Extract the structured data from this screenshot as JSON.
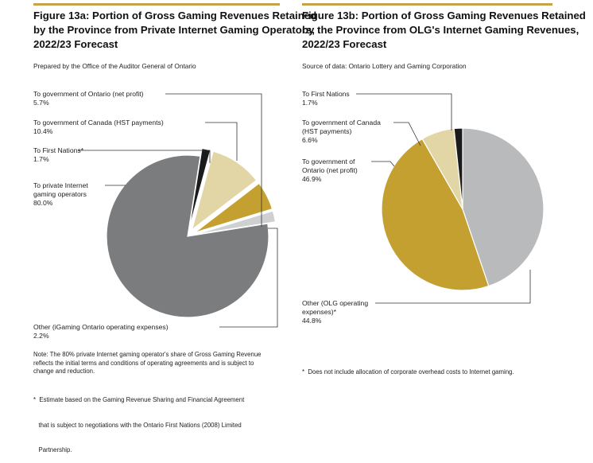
{
  "figures": [
    {
      "title_lines": [
        "Figure 13a: Portion of Gross Gaming Revenues Retained",
        "by the Province from Private Internet Gaming Operators,",
        "2022/23 Forecast"
      ],
      "source": "Prepared by the Office of the Auditor General of Ontario",
      "labels": [
        {
          "lines": [
            "To government of Ontario (net profit)",
            "5.7%"
          ]
        },
        {
          "lines": [
            "To government of Canada (HST payments)",
            "10.4%"
          ]
        },
        {
          "lines": [
            "To First Nations*",
            "1.7%"
          ]
        },
        {
          "lines": [
            "To private Internet",
            "gaming operators",
            "80.0%"
          ]
        },
        {
          "lines": [
            "Other (iGaming Ontario operating expenses)",
            "2.2%"
          ]
        }
      ],
      "notes": [
        "Note: The 80% private Internet gaming operator's share of Gross Gaming Revenue",
        "reflects the initial terms and conditions of operating agreements and is subject to",
        "change and reduction."
      ],
      "footnote": [
        "*  Estimate based on the Gaming Revenue Sharing and Financial Agreement",
        "   that is subject to negotiations with the Ontario First Nations (2008) Limited",
        "   Partnership."
      ]
    },
    {
      "title_lines": [
        "Figure 13b: Portion of Gross Gaming Revenues Retained",
        "by the Province from OLG's Internet Gaming Revenues,",
        "2022/23 Forecast"
      ],
      "source": "Source of data: Ontario Lottery and Gaming Corporation",
      "labels": [
        {
          "lines": [
            "To First Nations",
            "1.7%"
          ]
        },
        {
          "lines": [
            "To government of Canada",
            "(HST payments)",
            "6.6%"
          ]
        },
        {
          "lines": [
            "To government of",
            "Ontario (net profit)",
            "46.9%"
          ]
        },
        {
          "lines": [
            "Other (OLG operating",
            "expenses)*",
            "44.8%"
          ]
        }
      ],
      "footnote": [
        "*  Does not include allocation of corporate overhead costs to Internet gaming."
      ]
    }
  ],
  "chart_data": [
    {
      "type": "pie",
      "title": "Figure 13a: Portion of Gross Gaming Revenues Retained by the Province from Private Internet Gaming Operators, 2022/23 Forecast",
      "slices": [
        {
          "name": "To First Nations*",
          "value": 1.7,
          "color": "#1b1b1b"
        },
        {
          "name": "To government of Canada (HST payments)",
          "value": 10.4,
          "color": "#e2d5a6"
        },
        {
          "name": "To government of Ontario (net profit)",
          "value": 5.7,
          "color": "#c4a030"
        },
        {
          "name": "Other (iGaming Ontario operating expenses)",
          "value": 2.2,
          "color": "#cfd0d1"
        },
        {
          "name": "To private Internet gaming operators",
          "value": 80.0,
          "color": "#7b7c7e"
        }
      ]
    },
    {
      "type": "pie",
      "title": "Figure 13b: Portion of Gross Gaming Revenues Retained by the Province from OLG's Internet Gaming Revenues, 2022/23 Forecast",
      "slices": [
        {
          "name": "Other (OLG operating expenses)*",
          "value": 44.8,
          "color": "#b9babc"
        },
        {
          "name": "To government of Ontario (net profit)",
          "value": 46.9,
          "color": "#c4a030"
        },
        {
          "name": "To government of Canada (HST payments)",
          "value": 6.6,
          "color": "#e2d5a6"
        },
        {
          "name": "To First Nations",
          "value": 1.7,
          "color": "#1b1b1b"
        }
      ]
    }
  ]
}
